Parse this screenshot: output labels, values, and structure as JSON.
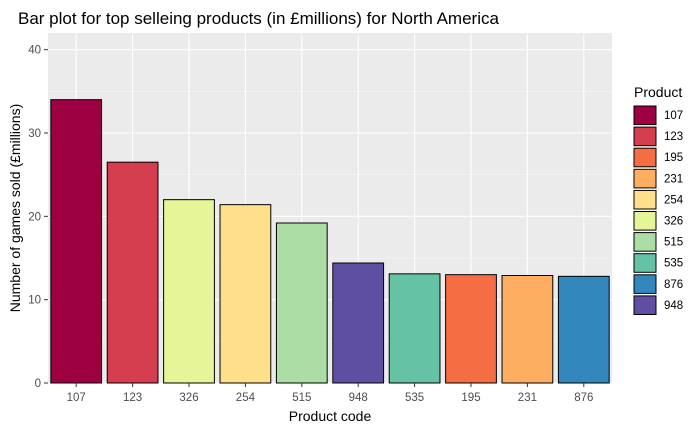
{
  "chart_data": {
    "type": "bar",
    "title": "Bar plot for top selleing products (in £millions) for North America",
    "xlabel": "Product code",
    "ylabel": "Number of games sold (£millions)",
    "ylim": [
      0,
      42
    ],
    "yticks": [
      0,
      10,
      20,
      30,
      40
    ],
    "grid": true,
    "legend_position": "right",
    "categories": [
      "107",
      "123",
      "326",
      "254",
      "515",
      "948",
      "535",
      "195",
      "231",
      "876"
    ],
    "values": [
      34.0,
      26.5,
      22.0,
      21.4,
      19.2,
      14.4,
      13.1,
      13.0,
      12.9,
      12.8
    ],
    "colors": {
      "107": "#9E0142",
      "123": "#D53E4F",
      "195": "#F46D43",
      "231": "#FDAE61",
      "254": "#FEE08B",
      "326": "#E6F598",
      "515": "#ABDDA4",
      "535": "#66C2A5",
      "876": "#3288BD",
      "948": "#5E4FA2"
    },
    "legend": {
      "title": "Product",
      "items": [
        "107",
        "123",
        "195",
        "231",
        "254",
        "326",
        "515",
        "535",
        "876",
        "948"
      ]
    }
  }
}
